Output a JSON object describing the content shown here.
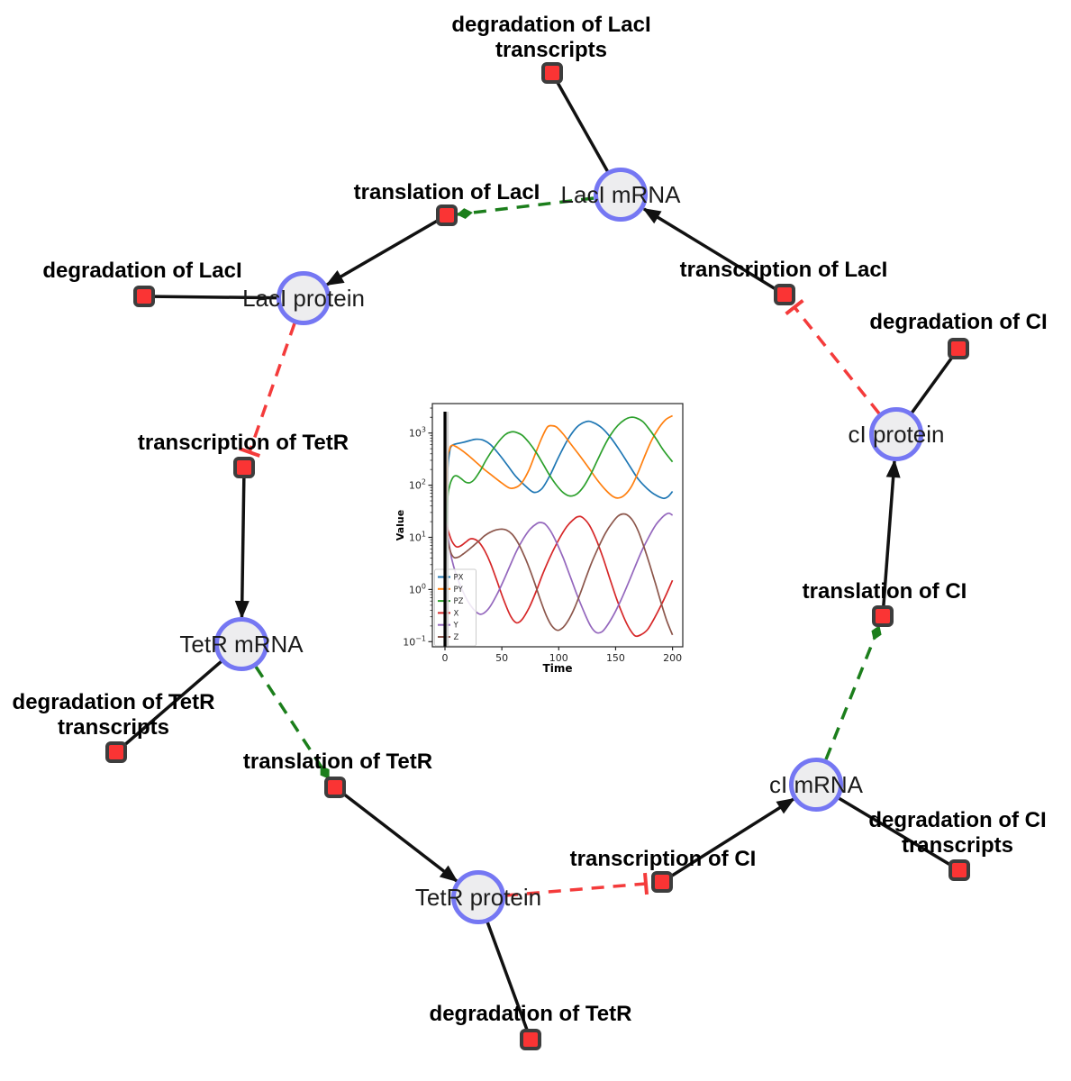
{
  "diagram": {
    "species": {
      "laci_mrna": "LacI mRNA",
      "laci_protein": "LacI protein",
      "tetr_mrna": "TetR mRNA",
      "tetr_protein": "TetR protein",
      "ci_mrna": "cI mRNA",
      "ci_protein": "cI protein"
    },
    "reactions": {
      "deg_laci_tx": "degradation of LacI transcripts",
      "transl_laci": "translation of LacI",
      "txn_laci": "transcription of LacI",
      "deg_laci": "degradation of LacI",
      "deg_ci": "degradation of CI",
      "txn_tetr": "transcription of TetR",
      "transl_ci": "translation of CI",
      "deg_tetr_tx": "degradation of TetR transcripts",
      "transl_tetr": "translation of TetR",
      "txn_ci": "transcription of CI",
      "deg_tetr": "degradation of TetR",
      "deg_ci_tx": "degradation of CI transcripts"
    },
    "edge_types": {
      "production_consumption": "solid black",
      "inhibition": "dashed red with T-bar",
      "modifier": "dashed green with diamond"
    }
  },
  "colors": {
    "species_fill": "#ededef",
    "species_border": "#7577f3",
    "reaction_fill": "#fa3434",
    "reaction_border": "#3d3d3d",
    "edge_black": "#111111",
    "inhibition_red": "#f43b3b",
    "modifier_green": "#1b7e1b"
  },
  "chart_data": {
    "type": "line",
    "title": "",
    "xlabel": "Time",
    "ylabel": "Value",
    "x_range": [
      0,
      200
    ],
    "xticks": [
      0,
      50,
      100,
      150,
      200
    ],
    "y_scale": "log",
    "ytick_exponents": [
      -1,
      0,
      1,
      2,
      3
    ],
    "grid": false,
    "legend_position": "lower left",
    "vline_x": 0,
    "series": [
      {
        "name": "PX",
        "color": "#1f77b4",
        "points": [
          [
            0,
            0.9
          ],
          [
            2,
            120
          ],
          [
            4,
            420
          ],
          [
            6,
            570
          ],
          [
            10,
            620
          ],
          [
            16,
            660
          ],
          [
            22,
            720
          ],
          [
            27,
            760
          ],
          [
            33,
            740
          ],
          [
            40,
            600
          ],
          [
            48,
            380
          ],
          [
            55,
            240
          ],
          [
            62,
            150
          ],
          [
            70,
            100
          ],
          [
            78,
            73
          ],
          [
            85,
            85
          ],
          [
            92,
            150
          ],
          [
            100,
            350
          ],
          [
            108,
            750
          ],
          [
            116,
            1300
          ],
          [
            124,
            1650
          ],
          [
            130,
            1600
          ],
          [
            138,
            1250
          ],
          [
            146,
            800
          ],
          [
            154,
            450
          ],
          [
            162,
            240
          ],
          [
            170,
            130
          ],
          [
            178,
            85
          ],
          [
            185,
            65
          ],
          [
            192,
            56
          ],
          [
            196,
            60
          ],
          [
            200,
            76
          ]
        ]
      },
      {
        "name": "PY",
        "color": "#ff7f0e",
        "points": [
          [
            0,
            0.9
          ],
          [
            2,
            200
          ],
          [
            4,
            480
          ],
          [
            6,
            580
          ],
          [
            9,
            560
          ],
          [
            14,
            480
          ],
          [
            20,
            380
          ],
          [
            27,
            280
          ],
          [
            34,
            205
          ],
          [
            42,
            150
          ],
          [
            50,
            110
          ],
          [
            57,
            88
          ],
          [
            63,
            92
          ],
          [
            68,
            115
          ],
          [
            74,
            200
          ],
          [
            80,
            430
          ],
          [
            85,
            800
          ],
          [
            90,
            1300
          ],
          [
            94,
            1380
          ],
          [
            98,
            1300
          ],
          [
            104,
            950
          ],
          [
            110,
            640
          ],
          [
            118,
            380
          ],
          [
            126,
            220
          ],
          [
            134,
            125
          ],
          [
            141,
            82
          ],
          [
            148,
            60
          ],
          [
            153,
            57
          ],
          [
            158,
            65
          ],
          [
            164,
            95
          ],
          [
            170,
            180
          ],
          [
            176,
            380
          ],
          [
            182,
            750
          ],
          [
            188,
            1250
          ],
          [
            194,
            1800
          ],
          [
            200,
            2150
          ]
        ]
      },
      {
        "name": "PZ",
        "color": "#2ca02c",
        "points": [
          [
            0,
            0.9
          ],
          [
            2,
            40
          ],
          [
            4,
            95
          ],
          [
            7,
            140
          ],
          [
            10,
            152
          ],
          [
            14,
            135
          ],
          [
            18,
            115
          ],
          [
            22,
            112
          ],
          [
            26,
            130
          ],
          [
            31,
            190
          ],
          [
            36,
            300
          ],
          [
            42,
            480
          ],
          [
            48,
            720
          ],
          [
            53,
            930
          ],
          [
            58,
            1050
          ],
          [
            62,
            1040
          ],
          [
            68,
            900
          ],
          [
            74,
            650
          ],
          [
            80,
            430
          ],
          [
            86,
            260
          ],
          [
            92,
            155
          ],
          [
            98,
            100
          ],
          [
            104,
            72
          ],
          [
            110,
            62
          ],
          [
            116,
            68
          ],
          [
            122,
            95
          ],
          [
            128,
            160
          ],
          [
            134,
            300
          ],
          [
            140,
            560
          ],
          [
            146,
            950
          ],
          [
            152,
            1400
          ],
          [
            158,
            1800
          ],
          [
            163,
            2000
          ],
          [
            168,
            1950
          ],
          [
            174,
            1650
          ],
          [
            180,
            1150
          ],
          [
            186,
            750
          ],
          [
            192,
            470
          ],
          [
            200,
            280
          ]
        ]
      },
      {
        "name": "X",
        "color": "#d62728",
        "points": [
          [
            0,
            22
          ],
          [
            3,
            13
          ],
          [
            6,
            8.5
          ],
          [
            10,
            6.6
          ],
          [
            14,
            6.9
          ],
          [
            18,
            8
          ],
          [
            22,
            9.3
          ],
          [
            26,
            9.2
          ],
          [
            30,
            8
          ],
          [
            35,
            5.5
          ],
          [
            40,
            3.2
          ],
          [
            46,
            1.4
          ],
          [
            52,
            0.6
          ],
          [
            58,
            0.3
          ],
          [
            63,
            0.23
          ],
          [
            68,
            0.27
          ],
          [
            74,
            0.45
          ],
          [
            80,
            0.9
          ],
          [
            86,
            2
          ],
          [
            93,
            4.5
          ],
          [
            100,
            9
          ],
          [
            107,
            16
          ],
          [
            113,
            22
          ],
          [
            117,
            25
          ],
          [
            121,
            24
          ],
          [
            127,
            17
          ],
          [
            133,
            9
          ],
          [
            139,
            4
          ],
          [
            145,
            1.6
          ],
          [
            151,
            0.65
          ],
          [
            157,
            0.3
          ],
          [
            162,
            0.18
          ],
          [
            167,
            0.13
          ],
          [
            172,
            0.135
          ],
          [
            178,
            0.17
          ],
          [
            184,
            0.28
          ],
          [
            190,
            0.5
          ],
          [
            195,
            0.85
          ],
          [
            200,
            1.5
          ]
        ]
      },
      {
        "name": "Y",
        "color": "#9467bd",
        "points": [
          [
            0,
            25
          ],
          [
            3,
            9
          ],
          [
            6,
            3.8
          ],
          [
            10,
            1.9
          ],
          [
            15,
            1.0
          ],
          [
            20,
            0.6
          ],
          [
            25,
            0.42
          ],
          [
            30,
            0.34
          ],
          [
            34,
            0.35
          ],
          [
            39,
            0.45
          ],
          [
            45,
            0.75
          ],
          [
            51,
            1.4
          ],
          [
            57,
            2.8
          ],
          [
            63,
            5.5
          ],
          [
            69,
            9.5
          ],
          [
            75,
            14.5
          ],
          [
            81,
            18.5
          ],
          [
            84,
            19.3
          ],
          [
            88,
            18
          ],
          [
            93,
            13
          ],
          [
            98,
            8
          ],
          [
            104,
            4
          ],
          [
            110,
            1.8
          ],
          [
            116,
            0.8
          ],
          [
            122,
            0.38
          ],
          [
            128,
            0.2
          ],
          [
            133,
            0.15
          ],
          [
            138,
            0.155
          ],
          [
            143,
            0.21
          ],
          [
            149,
            0.35
          ],
          [
            155,
            0.65
          ],
          [
            161,
            1.3
          ],
          [
            167,
            2.7
          ],
          [
            173,
            5.5
          ],
          [
            179,
            10
          ],
          [
            185,
            17
          ],
          [
            190,
            23
          ],
          [
            194,
            27.5
          ],
          [
            197,
            29
          ],
          [
            200,
            26.5
          ]
        ]
      },
      {
        "name": "Z",
        "color": "#8c564b",
        "points": [
          [
            0,
            25
          ],
          [
            2,
            10
          ],
          [
            5,
            5.2
          ],
          [
            8,
            4.1
          ],
          [
            12,
            4.2
          ],
          [
            16,
            4.8
          ],
          [
            20,
            5.6
          ],
          [
            25,
            6.9
          ],
          [
            30,
            8.6
          ],
          [
            35,
            10.8
          ],
          [
            40,
            12.6
          ],
          [
            45,
            13.9
          ],
          [
            50,
            14.4
          ],
          [
            54,
            13.8
          ],
          [
            59,
            11.5
          ],
          [
            64,
            8
          ],
          [
            69,
            4.8
          ],
          [
            74,
            2.6
          ],
          [
            79,
            1.3
          ],
          [
            84,
            0.62
          ],
          [
            89,
            0.32
          ],
          [
            94,
            0.2
          ],
          [
            99,
            0.165
          ],
          [
            104,
            0.19
          ],
          [
            109,
            0.27
          ],
          [
            114,
            0.45
          ],
          [
            119,
            0.85
          ],
          [
            124,
            1.7
          ],
          [
            129,
            3.3
          ],
          [
            135,
            6.5
          ],
          [
            141,
            12
          ],
          [
            147,
            19
          ],
          [
            152,
            25.5
          ],
          [
            156,
            28
          ],
          [
            160,
            27
          ],
          [
            165,
            21
          ],
          [
            170,
            13
          ],
          [
            175,
            6.5
          ],
          [
            180,
            3
          ],
          [
            185,
            1.3
          ],
          [
            190,
            0.55
          ],
          [
            195,
            0.25
          ],
          [
            200,
            0.135
          ]
        ]
      }
    ]
  }
}
